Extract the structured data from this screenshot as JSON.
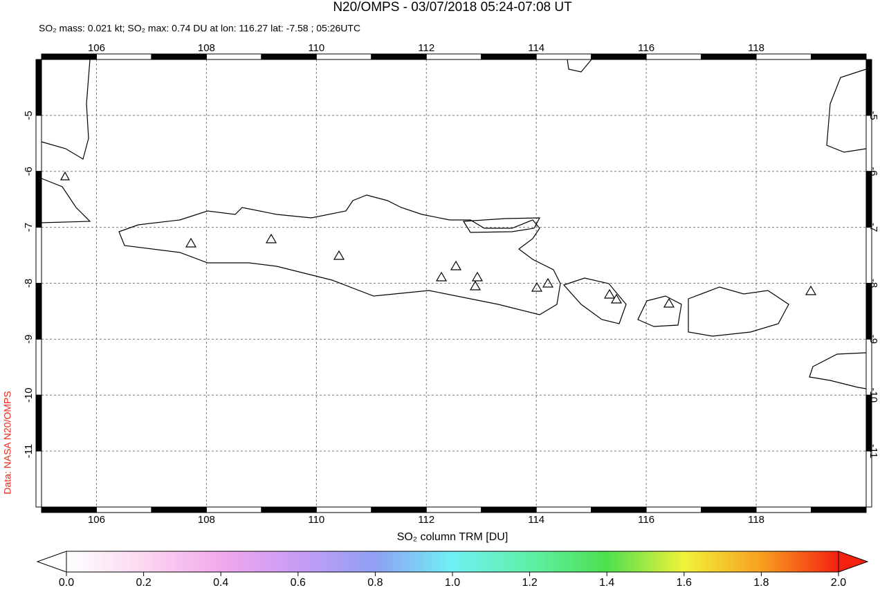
{
  "title": "N20/OMPS - 03/07/2018 05:24-07:08 UT",
  "subtitle": "SO₂ mass: 0.021 kt; SO₂ max: 0.74 DU at lon: 116.27 lat: -7.58 ; 05:26UTC",
  "credit": "Data: NASA N20/OMPS",
  "map": {
    "xlim": [
      105,
      120
    ],
    "ylim": [
      -4,
      -12
    ],
    "xticks": [
      106,
      108,
      110,
      112,
      114,
      116,
      118
    ],
    "yticks": [
      -5,
      -6,
      -7,
      -8,
      -9,
      -10,
      -11
    ]
  },
  "colorbar": {
    "label": "SO₂ column TRM [DU]",
    "lim": [
      0,
      2
    ],
    "ticks": [
      {
        "value": 0,
        "label": "0.0"
      },
      {
        "value": 0.2,
        "label": "0.2"
      },
      {
        "value": 0.4,
        "label": "0.4"
      },
      {
        "value": 0.6,
        "label": "0.6"
      },
      {
        "value": 0.8,
        "label": "0.8"
      },
      {
        "value": 1,
        "label": "1.0"
      },
      {
        "value": 1.2,
        "label": "1.2"
      },
      {
        "value": 1.4,
        "label": "1.4"
      },
      {
        "value": 1.6,
        "label": "1.6"
      },
      {
        "value": 1.8,
        "label": "1.8"
      },
      {
        "value": 2,
        "label": "2.0"
      }
    ]
  }
}
